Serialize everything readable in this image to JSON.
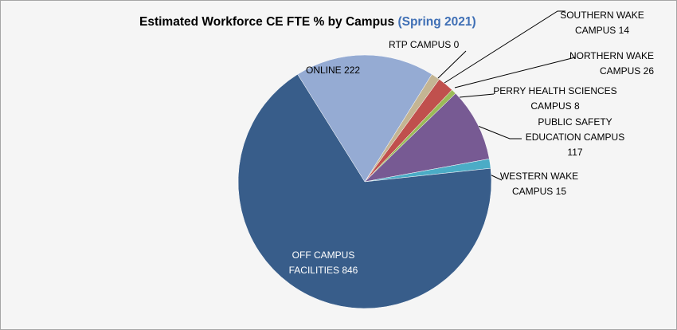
{
  "chart_data": {
    "type": "pie",
    "title": "Estimated Workforce CE FTE % by Campus",
    "subtitle": "(Spring 2021)",
    "categories": [
      "RTP CAMPUS",
      "SOUTHERN WAKE CAMPUS",
      "NORTHERN WAKE CAMPUS",
      "PERRY HEALTH SCIENCES CAMPUS",
      "PUBLIC SAFETY EDUCATION CAMPUS",
      "WESTERN WAKE CAMPUS",
      "OFF CAMPUS FACILITIES",
      "ONLINE"
    ],
    "values": [
      0,
      14,
      26,
      8,
      117,
      15,
      846,
      222
    ],
    "colors": [
      "#d9c89e",
      "#c4b593",
      "#c0504d",
      "#9bbb59",
      "#775a93",
      "#4bacc6",
      "#385d8a",
      "#95abd3"
    ]
  }
}
